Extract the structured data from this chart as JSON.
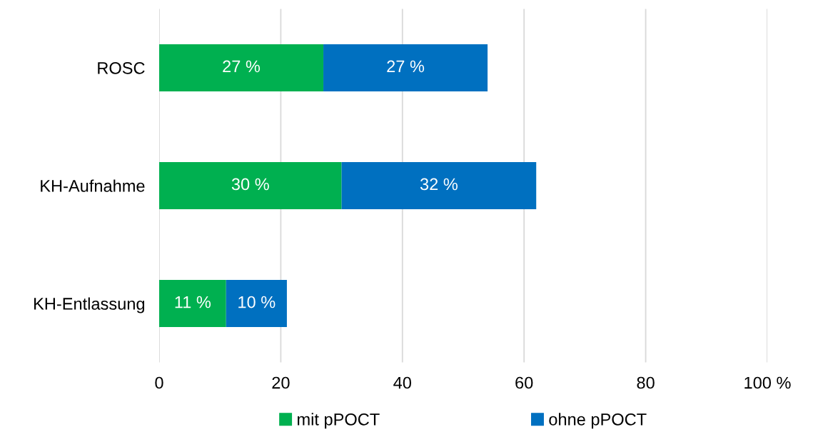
{
  "chart_data": {
    "type": "bar",
    "orientation": "horizontal",
    "stacked": true,
    "categories": [
      "ROSC",
      "KH-Aufnahme",
      "KH-Entlassung"
    ],
    "series": [
      {
        "name": "mit pPOCT",
        "color": "#00b050",
        "values": [
          27,
          30,
          11
        ],
        "value_labels": [
          "27 %",
          "30 %",
          "11 %"
        ]
      },
      {
        "name": "ohne pPOCT",
        "color": "#0070c0",
        "values": [
          27,
          32,
          10
        ],
        "value_labels": [
          "27 %",
          "32 %",
          "10 %"
        ]
      }
    ],
    "xlim": [
      0,
      100
    ],
    "xticks": [
      0,
      20,
      40,
      60,
      80,
      {
        "value": 100,
        "label": "100 %"
      }
    ],
    "grid": "x",
    "legend": "bottom"
  }
}
